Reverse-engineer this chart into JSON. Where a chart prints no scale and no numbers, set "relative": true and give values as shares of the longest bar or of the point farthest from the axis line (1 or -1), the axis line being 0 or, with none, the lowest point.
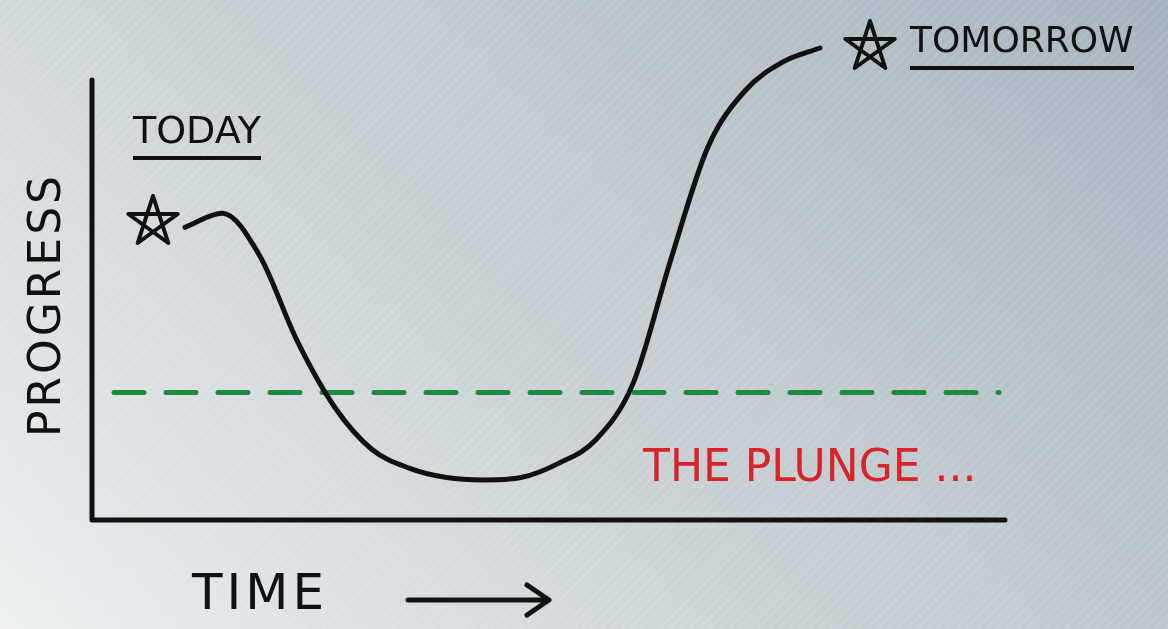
{
  "chart_data": {
    "type": "line",
    "relative": true,
    "xlabel": "TIME",
    "ylabel": "PROGRESS",
    "categories": [
      null,
      null,
      null,
      null,
      null,
      null,
      null,
      null,
      null,
      null,
      null,
      null,
      null,
      null,
      null,
      null,
      null,
      null
    ],
    "series": [
      {
        "color": "#111111",
        "values": [
          0.62,
          0.65,
          0.56,
          0.38,
          0.24,
          0.15,
          0.11,
          0.09,
          0.085,
          0.09,
          0.12,
          0.17,
          0.29,
          0.55,
          0.79,
          0.91,
          0.97,
          1.0
        ]
      }
    ],
    "marker": "none",
    "line_style": "solid",
    "ref_lines": [
      {
        "axis": "y",
        "value": 0.27,
        "color": "#1e8a3e",
        "line_style": "dashed"
      }
    ],
    "annotations": [
      "TODAY",
      "TOMORROW",
      "THE PLUNGE ..."
    ]
  }
}
